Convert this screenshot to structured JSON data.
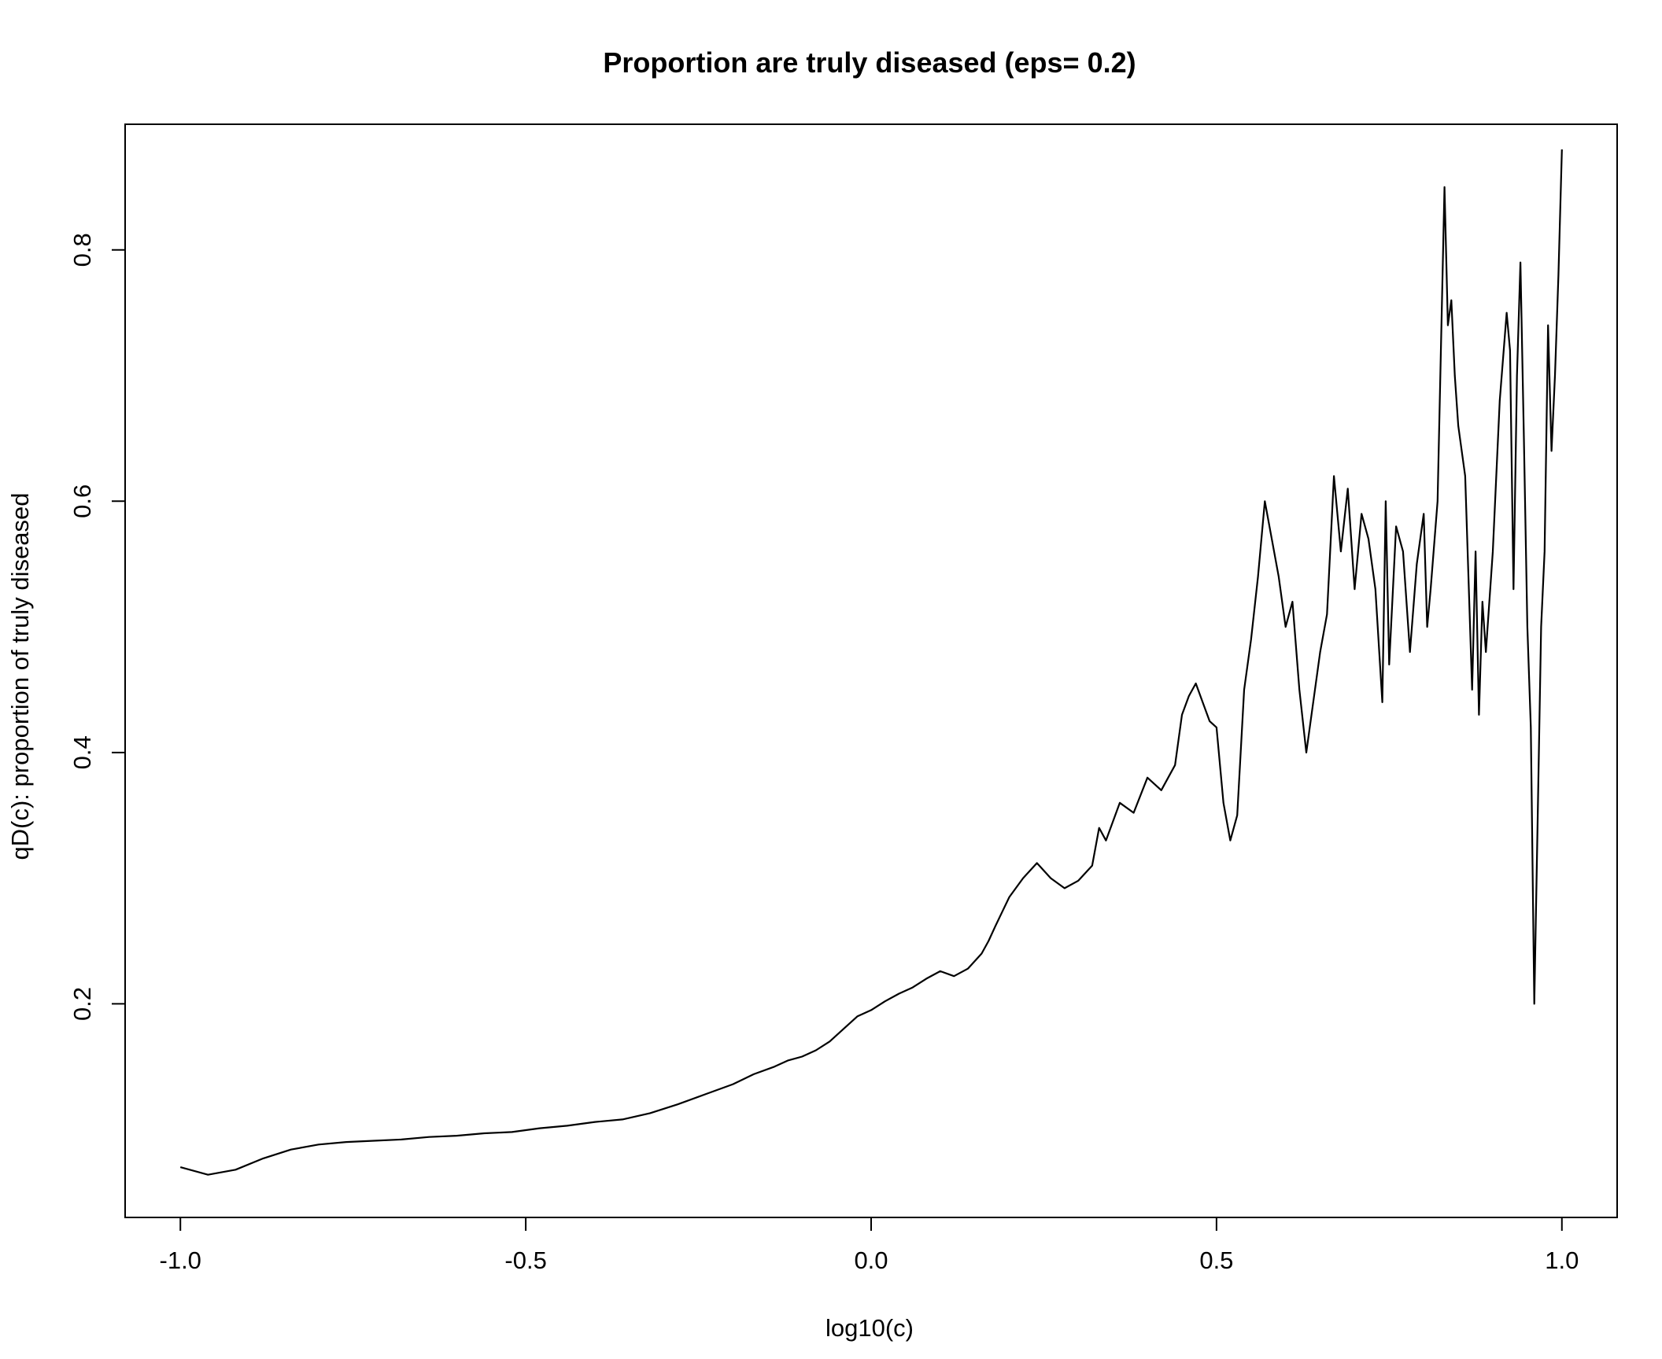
{
  "chart_data": {
    "type": "line",
    "title": "Proportion are truly diseased (eps= 0.2)",
    "xlabel": "log10(c)",
    "ylabel": "qD(c): proportion of truly diseased",
    "xlim": [
      -1.08,
      1.08
    ],
    "ylim": [
      0.03,
      0.9
    ],
    "x_ticks": [
      -1.0,
      -0.5,
      0.0,
      0.5,
      1.0
    ],
    "x_tick_labels": [
      "-1.0",
      "-0.5",
      "0.0",
      "0.5",
      "1.0"
    ],
    "y_ticks": [
      0.2,
      0.4,
      0.6,
      0.8
    ],
    "y_tick_labels": [
      "0.2",
      "0.4",
      "0.6",
      "0.8"
    ],
    "grid": false,
    "line_color": "#000000",
    "series": [
      {
        "x": [
          -1.0,
          -0.96,
          -0.92,
          -0.88,
          -0.84,
          -0.8,
          -0.76,
          -0.72,
          -0.68,
          -0.64,
          -0.6,
          -0.56,
          -0.52,
          -0.48,
          -0.44,
          -0.4,
          -0.36,
          -0.32,
          -0.28,
          -0.24,
          -0.2,
          -0.17,
          -0.14,
          -0.12,
          -0.1,
          -0.08,
          -0.06,
          -0.04,
          -0.02,
          0.0,
          0.02,
          0.04,
          0.06,
          0.08,
          0.1,
          0.12,
          0.14,
          0.16,
          0.17,
          0.18,
          0.2,
          0.22,
          0.24,
          0.26,
          0.28,
          0.3,
          0.32,
          0.33,
          0.34,
          0.36,
          0.38,
          0.4,
          0.42,
          0.44,
          0.45,
          0.46,
          0.47,
          0.48,
          0.49,
          0.5,
          0.51,
          0.52,
          0.53,
          0.54,
          0.55,
          0.56,
          0.57,
          0.58,
          0.59,
          0.6,
          0.61,
          0.62,
          0.63,
          0.64,
          0.65,
          0.66,
          0.67,
          0.68,
          0.69,
          0.7,
          0.71,
          0.72,
          0.73,
          0.74,
          0.745,
          0.75,
          0.76,
          0.77,
          0.78,
          0.79,
          0.8,
          0.805,
          0.81,
          0.82,
          0.83,
          0.835,
          0.84,
          0.845,
          0.85,
          0.86,
          0.87,
          0.875,
          0.88,
          0.885,
          0.89,
          0.9,
          0.91,
          0.92,
          0.925,
          0.93,
          0.935,
          0.94,
          0.945,
          0.95,
          0.955,
          0.96,
          0.965,
          0.97,
          0.975,
          0.98,
          0.985,
          0.99,
          0.995,
          1.0
        ],
        "y": [
          0.07,
          0.064,
          0.068,
          0.077,
          0.084,
          0.088,
          0.09,
          0.091,
          0.092,
          0.094,
          0.095,
          0.097,
          0.098,
          0.101,
          0.103,
          0.106,
          0.108,
          0.113,
          0.12,
          0.128,
          0.136,
          0.144,
          0.15,
          0.155,
          0.158,
          0.163,
          0.17,
          0.18,
          0.19,
          0.195,
          0.202,
          0.208,
          0.213,
          0.22,
          0.226,
          0.222,
          0.228,
          0.24,
          0.25,
          0.262,
          0.285,
          0.3,
          0.312,
          0.3,
          0.292,
          0.298,
          0.31,
          0.34,
          0.33,
          0.36,
          0.352,
          0.38,
          0.37,
          0.39,
          0.43,
          0.445,
          0.455,
          0.44,
          0.425,
          0.42,
          0.36,
          0.33,
          0.35,
          0.45,
          0.49,
          0.54,
          0.6,
          0.57,
          0.54,
          0.5,
          0.52,
          0.45,
          0.4,
          0.44,
          0.48,
          0.51,
          0.62,
          0.56,
          0.61,
          0.53,
          0.59,
          0.57,
          0.53,
          0.44,
          0.6,
          0.47,
          0.58,
          0.56,
          0.48,
          0.55,
          0.59,
          0.5,
          0.53,
          0.6,
          0.85,
          0.74,
          0.76,
          0.7,
          0.66,
          0.62,
          0.45,
          0.56,
          0.43,
          0.52,
          0.48,
          0.56,
          0.68,
          0.75,
          0.72,
          0.53,
          0.7,
          0.79,
          0.65,
          0.5,
          0.42,
          0.2,
          0.35,
          0.5,
          0.56,
          0.74,
          0.64,
          0.7,
          0.78,
          0.88
        ]
      }
    ]
  }
}
